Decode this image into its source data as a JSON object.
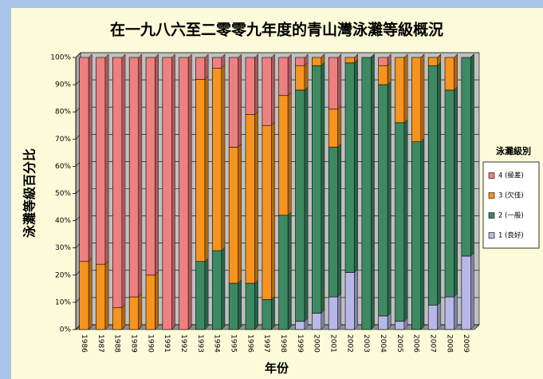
{
  "chart_data": {
    "type": "bar3d_stacked_percent",
    "title": "在一九八六至二零零九年度的青山灣泳灘等級概況",
    "x_label": "年份",
    "y_label": "泳灘等級百分比",
    "legend_title": "泳灘級別",
    "categories": [
      "1986",
      "1987",
      "1988",
      "1989",
      "1990",
      "1991",
      "1992",
      "1993",
      "1994",
      "1995",
      "1996",
      "1997",
      "1998",
      "1999",
      "2000",
      "2001",
      "2002",
      "2003",
      "2004",
      "2005",
      "2006",
      "2007",
      "2008",
      "2009"
    ],
    "series": [
      {
        "name": "1 (良好)",
        "color": "#b8b8e8",
        "values": [
          0,
          0,
          0,
          0,
          0,
          0,
          0,
          0,
          0,
          0,
          0,
          0,
          0,
          3,
          6,
          12,
          21,
          0,
          5,
          3,
          0,
          9,
          12,
          27
        ]
      },
      {
        "name": "2 (一般)",
        "color": "#3d8a62",
        "values": [
          0,
          0,
          0,
          0,
          0,
          0,
          0,
          25,
          29,
          17,
          17,
          11,
          42,
          85,
          91,
          55,
          77,
          100,
          85,
          73,
          69,
          88,
          76,
          73
        ]
      },
      {
        "name": "3 (欠佳)",
        "color": "#f7941d",
        "values": [
          25,
          24,
          8,
          12,
          20,
          0,
          0,
          67,
          67,
          50,
          62,
          64,
          44,
          9,
          3,
          14,
          2,
          0,
          7,
          24,
          31,
          3,
          12,
          0
        ]
      },
      {
        "name": "4 (極差)",
        "color": "#f08080",
        "values": [
          75,
          76,
          92,
          88,
          80,
          100,
          100,
          8,
          4,
          33,
          21,
          25,
          14,
          3,
          0,
          19,
          0,
          0,
          3,
          0,
          0,
          0,
          0,
          0
        ]
      }
    ],
    "ylim": [
      0,
      100
    ],
    "yticks": [
      {
        "value": 0,
        "label": "0%"
      },
      {
        "value": 10,
        "label": "10%"
      },
      {
        "value": 20,
        "label": "20%"
      },
      {
        "value": 30,
        "label": "30%"
      },
      {
        "value": 40,
        "label": "40%"
      },
      {
        "value": 50,
        "label": "50%"
      },
      {
        "value": 60,
        "label": "60%"
      },
      {
        "value": 70,
        "label": "70%"
      },
      {
        "value": 80,
        "label": "80%"
      },
      {
        "value": 90,
        "label": "90%"
      },
      {
        "value": 100,
        "label": "100%"
      }
    ],
    "grid": true
  }
}
